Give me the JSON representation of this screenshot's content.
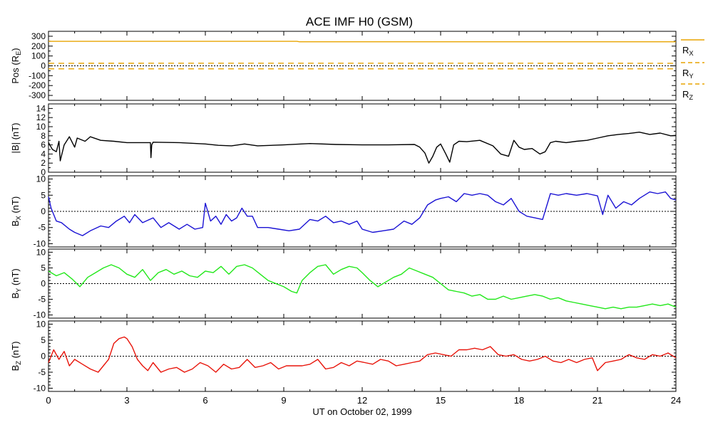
{
  "chart_data": {
    "type": "line",
    "title": "ACE IMF H0 (GSM)",
    "xlabel": "UT on October 02, 1999",
    "xlim": [
      0,
      24
    ],
    "x_ticks": [
      "0",
      "3",
      "6",
      "9",
      "12",
      "15",
      "18",
      "21",
      "24"
    ],
    "panels": [
      {
        "id": "pos",
        "ylabel_main": "Pos (R",
        "ylabel_sub": "E",
        "ylabel_tail": ")",
        "ylim": [
          -350,
          350
        ],
        "y_ticks": [
          "300",
          "200",
          "100",
          "0",
          "-100",
          "-200",
          "-300"
        ],
        "y_tick_values": [
          300,
          200,
          100,
          0,
          -100,
          -200,
          -300
        ],
        "zero_line": true,
        "series": [
          {
            "name": "RX",
            "label_main": "R",
            "label_sub": "X",
            "color": "#e8a400",
            "dash": "none",
            "x": [
              0,
              9.5,
              9.6,
              24
            ],
            "y": [
              248,
              248,
              244,
              244
            ]
          },
          {
            "name": "RY",
            "label_main": "R",
            "label_sub": "Y",
            "color": "#e8a400",
            "dash": "8,6",
            "x": [
              0,
              9.5,
              24
            ],
            "y": [
              26,
              27,
              26
            ]
          },
          {
            "name": "RZ",
            "label_main": "R",
            "label_sub": "Z",
            "color": "#e8a400",
            "dash": "8,6",
            "x": [
              0,
              24
            ],
            "y": [
              -30,
              -30
            ]
          }
        ]
      },
      {
        "id": "bmag",
        "ylabel_main": "|B| (nT)",
        "ylabel_sub": "",
        "ylabel_tail": "",
        "ylim": [
          0,
          15
        ],
        "y_ticks": [
          "14",
          "12",
          "10",
          "8",
          "6",
          "4",
          "2",
          "0"
        ],
        "y_tick_values": [
          14,
          12,
          10,
          8,
          6,
          4,
          2,
          0
        ],
        "zero_line": false,
        "series": [
          {
            "name": "|B|",
            "color": "#000000",
            "dash": "none",
            "x": [
              0,
              0.15,
              0.3,
              0.4,
              0.45,
              0.6,
              0.8,
              1.0,
              1.1,
              1.4,
              1.6,
              2.0,
              2.5,
              3.0,
              3.5,
              3.9,
              3.92,
              3.95,
              4.0,
              5.0,
              6.0,
              6.5,
              7.0,
              7.5,
              8.0,
              9.0,
              10.0,
              11.0,
              12.0,
              13.0,
              14.0,
              14.2,
              14.4,
              14.55,
              14.7,
              14.85,
              15.0,
              15.2,
              15.35,
              15.5,
              15.7,
              16.0,
              16.5,
              17.0,
              17.3,
              17.6,
              17.8,
              18.0,
              18.2,
              18.5,
              18.8,
              19.0,
              19.2,
              19.4,
              19.8,
              20.2,
              20.6,
              21.0,
              21.4,
              21.8,
              22.2,
              22.6,
              23.0,
              23.4,
              23.8,
              24.0
            ],
            "y": [
              6.5,
              5.0,
              4.5,
              6.8,
              2.5,
              6.0,
              7.8,
              5.5,
              7.5,
              6.8,
              7.8,
              7.0,
              6.8,
              6.5,
              6.5,
              6.5,
              3.2,
              6.0,
              6.6,
              6.5,
              6.2,
              5.9,
              5.8,
              6.2,
              5.8,
              6.0,
              6.3,
              6.1,
              6.0,
              6.0,
              6.1,
              5.5,
              4.2,
              2.0,
              3.5,
              5.5,
              6.2,
              4.0,
              2.2,
              6.0,
              6.8,
              6.7,
              7.0,
              5.8,
              4.0,
              3.5,
              7.0,
              5.5,
              5.0,
              5.2,
              4.0,
              4.5,
              6.5,
              6.8,
              6.5,
              6.8,
              7.0,
              7.5,
              8.0,
              8.3,
              8.5,
              8.8,
              8.3,
              8.6,
              8.0,
              8.1
            ]
          }
        ]
      },
      {
        "id": "bx",
        "ylabel_main": "B",
        "ylabel_sub": "X",
        "ylabel_tail": " (nT)",
        "ylim": [
          -11,
          11
        ],
        "y_ticks": [
          "10",
          "5",
          "0",
          "-5",
          "-10"
        ],
        "y_tick_values": [
          10,
          5,
          0,
          -5,
          -10
        ],
        "zero_line": true,
        "series": [
          {
            "name": "Bx",
            "color": "#1a12d4",
            "dash": "none",
            "x": [
              0,
              0.1,
              0.3,
              0.5,
              0.8,
              1.0,
              1.3,
              1.6,
              2.0,
              2.3,
              2.6,
              2.9,
              3.1,
              3.3,
              3.6,
              4.0,
              4.3,
              4.6,
              5.0,
              5.3,
              5.6,
              5.9,
              6.0,
              6.2,
              6.4,
              6.6,
              6.8,
              7.0,
              7.2,
              7.4,
              7.6,
              7.8,
              8.0,
              8.4,
              8.8,
              9.2,
              9.6,
              10.0,
              10.3,
              10.6,
              10.9,
              11.2,
              11.5,
              11.8,
              12.0,
              12.4,
              12.8,
              13.2,
              13.6,
              13.9,
              14.2,
              14.5,
              14.8,
              15.0,
              15.3,
              15.6,
              15.9,
              16.2,
              16.5,
              16.8,
              17.1,
              17.4,
              17.7,
              18.0,
              18.3,
              18.6,
              18.9,
              19.2,
              19.5,
              19.8,
              20.2,
              20.6,
              21.0,
              21.2,
              21.4,
              21.7,
              22.0,
              22.3,
              22.6,
              23.0,
              23.3,
              23.6,
              23.8,
              24.0
            ],
            "y": [
              4.5,
              1.0,
              -3.0,
              -3.5,
              -5.5,
              -6.5,
              -7.5,
              -6.0,
              -4.5,
              -5.0,
              -3.0,
              -1.5,
              -3.5,
              -1.0,
              -3.5,
              -2.0,
              -5.0,
              -3.5,
              -5.5,
              -4.0,
              -5.5,
              -5.0,
              2.5,
              -3.0,
              -1.5,
              -4.0,
              -1.0,
              -3.0,
              -2.0,
              1.0,
              -1.5,
              -1.5,
              -5.0,
              -5.0,
              -5.5,
              -6.0,
              -5.5,
              -2.5,
              -3.0,
              -1.5,
              -3.5,
              -3.0,
              -4.0,
              -3.0,
              -5.5,
              -6.5,
              -6.0,
              -5.5,
              -3.0,
              -4.0,
              -2.0,
              2.0,
              3.5,
              4.0,
              4.5,
              3.0,
              5.5,
              5.0,
              5.5,
              5.0,
              3.0,
              2.0,
              4.0,
              0.0,
              -1.5,
              -2.0,
              -2.5,
              5.5,
              5.0,
              5.5,
              5.0,
              5.5,
              4.8,
              -1.0,
              5.0,
              1.0,
              3.0,
              2.0,
              4.0,
              6.0,
              5.5,
              6.0,
              4.0,
              3.5
            ]
          }
        ]
      },
      {
        "id": "by",
        "ylabel_main": "B",
        "ylabel_sub": "Y",
        "ylabel_tail": " (nT)",
        "ylim": [
          -11,
          11
        ],
        "y_ticks": [
          "10",
          "5",
          "0",
          "-5",
          "-10"
        ],
        "y_tick_values": [
          10,
          5,
          0,
          -5,
          -10
        ],
        "zero_line": true,
        "series": [
          {
            "name": "By",
            "color": "#22e81a",
            "dash": "none",
            "x": [
              0,
              0.3,
              0.6,
              0.9,
              1.2,
              1.5,
              1.8,
              2.1,
              2.4,
              2.7,
              3.0,
              3.3,
              3.6,
              3.9,
              4.2,
              4.5,
              4.8,
              5.1,
              5.4,
              5.7,
              6.0,
              6.3,
              6.6,
              6.9,
              7.2,
              7.5,
              7.8,
              8.1,
              8.4,
              8.7,
              9.0,
              9.3,
              9.5,
              9.7,
              10.0,
              10.3,
              10.6,
              10.9,
              11.2,
              11.5,
              11.8,
              12.0,
              12.3,
              12.6,
              12.9,
              13.2,
              13.5,
              13.8,
              14.1,
              14.4,
              14.7,
              15.0,
              15.3,
              15.6,
              15.9,
              16.2,
              16.5,
              16.8,
              17.1,
              17.4,
              17.7,
              18.0,
              18.3,
              18.6,
              18.9,
              19.2,
              19.5,
              19.8,
              20.1,
              20.4,
              20.7,
              21.0,
              21.3,
              21.6,
              21.9,
              22.2,
              22.5,
              22.8,
              23.1,
              23.4,
              23.7,
              24.0
            ],
            "y": [
              4.0,
              2.5,
              3.5,
              1.5,
              -1.0,
              2.0,
              3.5,
              5.0,
              6.0,
              5.0,
              3.0,
              2.0,
              4.5,
              1.0,
              3.5,
              4.5,
              3.0,
              4.0,
              2.5,
              2.0,
              4.0,
              3.5,
              5.5,
              3.0,
              5.5,
              6.0,
              5.0,
              3.0,
              1.0,
              0.0,
              -1.0,
              -2.5,
              -3.0,
              1.0,
              3.5,
              5.5,
              6.0,
              3.0,
              4.5,
              5.5,
              5.0,
              3.5,
              1.0,
              -1.0,
              0.5,
              2.0,
              3.0,
              5.0,
              4.0,
              3.0,
              2.0,
              0.0,
              -2.0,
              -2.5,
              -3.0,
              -4.0,
              -3.5,
              -5.0,
              -5.0,
              -4.0,
              -5.0,
              -4.5,
              -4.0,
              -3.5,
              -4.0,
              -5.0,
              -4.5,
              -5.5,
              -6.0,
              -6.5,
              -7.0,
              -7.5,
              -8.0,
              -7.5,
              -8.0,
              -7.5,
              -7.5,
              -7.0,
              -6.5,
              -7.0,
              -6.5,
              -7.5
            ]
          }
        ]
      },
      {
        "id": "bz",
        "ylabel_main": "B",
        "ylabel_sub": "Z",
        "ylabel_tail": " (nT)",
        "ylim": [
          -11,
          11
        ],
        "y_ticks": [
          "10",
          "5",
          "0",
          "-5",
          "-10"
        ],
        "y_tick_values": [
          10,
          5,
          0,
          -5,
          -10
        ],
        "zero_line": true,
        "series": [
          {
            "name": "Bz",
            "color": "#e8140a",
            "dash": "none",
            "x": [
              0,
              0.2,
              0.4,
              0.6,
              0.8,
              1.0,
              1.3,
              1.6,
              1.9,
              2.1,
              2.3,
              2.5,
              2.7,
              2.9,
              3.0,
              3.2,
              3.4,
              3.6,
              3.8,
              4.0,
              4.3,
              4.6,
              4.9,
              5.2,
              5.5,
              5.8,
              6.1,
              6.4,
              6.7,
              7.0,
              7.3,
              7.6,
              7.9,
              8.2,
              8.5,
              8.8,
              9.1,
              9.4,
              9.7,
              10.0,
              10.3,
              10.6,
              10.9,
              11.2,
              11.5,
              11.8,
              12.1,
              12.4,
              12.7,
              13.0,
              13.3,
              13.6,
              13.9,
              14.2,
              14.5,
              14.8,
              15.1,
              15.4,
              15.7,
              16.0,
              16.3,
              16.6,
              16.9,
              17.2,
              17.5,
              17.8,
              18.1,
              18.4,
              18.7,
              19.0,
              19.3,
              19.6,
              19.9,
              20.2,
              20.5,
              20.8,
              21.0,
              21.3,
              21.6,
              21.9,
              22.2,
              22.5,
              22.8,
              23.1,
              23.4,
              23.7,
              24.0
            ],
            "y": [
              -2.0,
              2.0,
              -1.0,
              1.5,
              -3.0,
              -1.0,
              -2.5,
              -4.0,
              -5.0,
              -3.0,
              -1.0,
              4.0,
              5.5,
              6.0,
              5.5,
              3.0,
              -1.0,
              -3.0,
              -4.5,
              -2.0,
              -5.0,
              -4.0,
              -3.5,
              -5.0,
              -4.0,
              -2.0,
              -3.0,
              -5.0,
              -2.5,
              -4.0,
              -3.5,
              -1.0,
              -3.5,
              -3.0,
              -2.0,
              -4.0,
              -3.0,
              -3.0,
              -3.0,
              -2.5,
              -1.0,
              -4.0,
              -3.5,
              -2.0,
              -3.0,
              -1.5,
              -2.0,
              -2.5,
              -1.0,
              -1.5,
              -3.0,
              -2.5,
              -2.0,
              -1.5,
              0.5,
              1.0,
              0.5,
              0.0,
              2.0,
              2.0,
              2.5,
              2.0,
              3.0,
              0.5,
              0.0,
              0.5,
              -1.0,
              -1.5,
              -1.0,
              0.0,
              -1.5,
              -2.0,
              -1.0,
              -2.0,
              -1.0,
              -0.5,
              -4.5,
              -2.0,
              -1.5,
              -1.0,
              0.5,
              -0.5,
              -1.0,
              0.5,
              0.0,
              1.0,
              -0.5
            ]
          }
        ]
      }
    ]
  }
}
